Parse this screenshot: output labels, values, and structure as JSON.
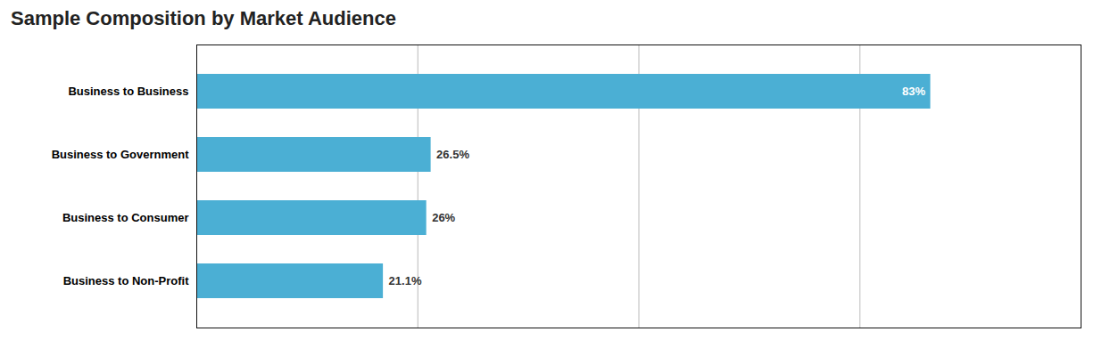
{
  "chart_data": {
    "type": "bar",
    "orientation": "horizontal",
    "title": "Sample Composition by Market Audience",
    "categories": [
      "Business to Business",
      "Business to Government",
      "Business to Consumer",
      "Business to Non-Profit"
    ],
    "values": [
      83,
      26.5,
      26,
      21.1
    ],
    "value_labels": [
      "83%",
      "26.5%",
      "26%",
      "21.1%"
    ],
    "data_labels": true,
    "color": "#4BAFD4",
    "xlim": [
      0,
      100
    ],
    "xticks": [
      25,
      50,
      75,
      100
    ],
    "grid": true,
    "tick_labels": "y"
  }
}
